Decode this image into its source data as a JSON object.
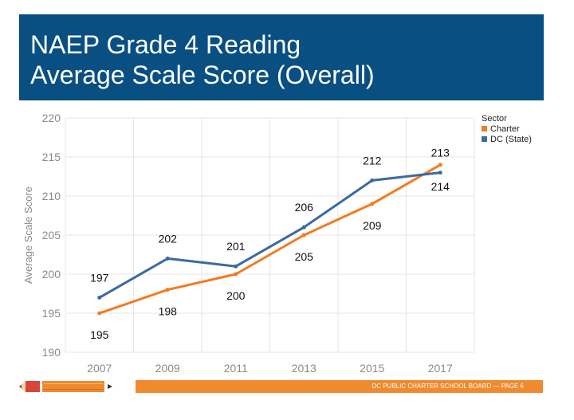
{
  "title": {
    "line1": "NAEP Grade 4 Reading",
    "line2": "Average Scale Score (Overall)"
  },
  "footer": {
    "text": "DC PUBLIC CHARTER SCHOOL BOARD — PAGE 6"
  },
  "chart_data": {
    "type": "line",
    "categories": [
      "2007",
      "2009",
      "2011",
      "2013",
      "2015",
      "2017"
    ],
    "ylabel": "Average Scale Score",
    "xlabel": "",
    "ylim": [
      190,
      220
    ],
    "yticks": [
      190,
      195,
      200,
      205,
      210,
      215,
      220
    ],
    "grid": true,
    "legend": {
      "title": "Sector",
      "placement": "top-right"
    },
    "series": [
      {
        "name": "Charter",
        "color": "#f37b20",
        "values": [
          195,
          198,
          200,
          205,
          209,
          214
        ],
        "label_position": "below"
      },
      {
        "name": "DC (State)",
        "color": "#3a6aa0",
        "values": [
          197,
          202,
          201,
          206,
          212,
          213
        ],
        "label_position": "above"
      }
    ]
  }
}
